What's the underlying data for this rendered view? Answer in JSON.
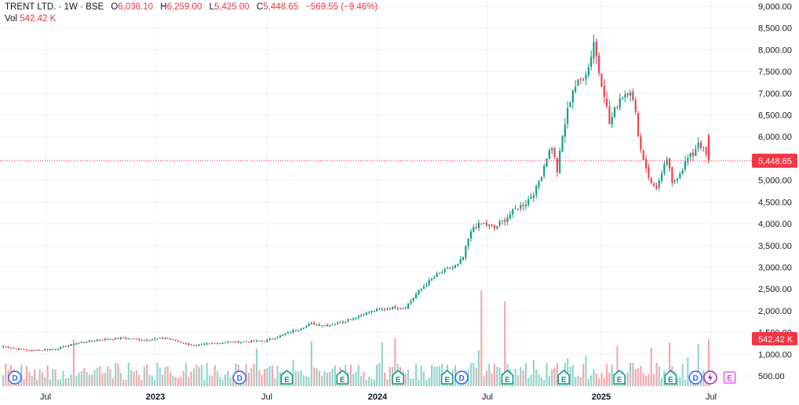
{
  "legend": {
    "symbol": "TRENT LTD.",
    "interval": "1W",
    "exchange": "BSE",
    "open_label": "O",
    "open": "6,036.10",
    "high_label": "H",
    "high": "6,259.00",
    "low_label": "L",
    "low": "5,425.00",
    "close_label": "C",
    "close": "5,448.65",
    "change": "−569.55 (−9.46%)",
    "vol_label": "Vol",
    "vol_value": "542.42 K"
  },
  "colors": {
    "up": "#089981",
    "down": "#f23645",
    "vol_up": "#8fd3c9",
    "vol_down": "#f5a3a8",
    "grid": "#f0f3fa",
    "axis_text": "#131722",
    "event_blue": "#2962ff",
    "event_green": "#089981",
    "event_purple": "#9c27b0",
    "event_pink": "#e040fb"
  },
  "price_tag": "5,448.65",
  "volume_tag": "542.42 K",
  "chart_data": {
    "type": "candlestick",
    "price_axis_ticks": [
      "9,000.00",
      "8,500.00",
      "8,000.00",
      "7,500.00",
      "7,000.00",
      "6,500.00",
      "6,000.00",
      "5,500.00",
      "5,000.00",
      "4,500.00",
      "4,000.00",
      "3,500.00",
      "3,000.00",
      "2,500.00",
      "2,000.00",
      "1,500.00",
      "1,000.00",
      "500.00"
    ],
    "ylim": [
      450,
      9000
    ],
    "time_axis_labels": [
      "Jul",
      "2023",
      "Jul",
      "2024",
      "Jul",
      "2025",
      "Jul"
    ],
    "last_price": 5448.65,
    "price_keypoints": [
      [
        0,
        1180
      ],
      [
        10,
        1080
      ],
      [
        20,
        1120
      ],
      [
        28,
        1250
      ],
      [
        36,
        1330
      ],
      [
        46,
        1370
      ],
      [
        54,
        1330
      ],
      [
        62,
        1370
      ],
      [
        66,
        1310
      ],
      [
        70,
        1240
      ],
      [
        74,
        1190
      ],
      [
        78,
        1240
      ],
      [
        84,
        1270
      ],
      [
        92,
        1290
      ],
      [
        100,
        1300
      ],
      [
        106,
        1420
      ],
      [
        112,
        1560
      ],
      [
        118,
        1700
      ],
      [
        124,
        1660
      ],
      [
        130,
        1760
      ],
      [
        136,
        1880
      ],
      [
        142,
        2000
      ],
      [
        146,
        2050
      ],
      [
        150,
        2080
      ],
      [
        154,
        2080
      ],
      [
        158,
        2380
      ],
      [
        162,
        2620
      ],
      [
        166,
        2820
      ],
      [
        170,
        2950
      ],
      [
        174,
        3050
      ],
      [
        176,
        3230
      ],
      [
        178,
        3640
      ],
      [
        180,
        3930
      ],
      [
        184,
        4000
      ],
      [
        188,
        3900
      ],
      [
        192,
        4100
      ],
      [
        196,
        4330
      ],
      [
        200,
        4480
      ],
      [
        204,
        4800
      ],
      [
        206,
        5140
      ],
      [
        208,
        5550
      ],
      [
        210,
        5780
      ],
      [
        212,
        5220
      ],
      [
        214,
        6000
      ],
      [
        216,
        6600
      ],
      [
        218,
        7100
      ],
      [
        221,
        7300
      ],
      [
        224,
        7600
      ],
      [
        226,
        8200
      ],
      [
        228,
        7500
      ],
      [
        230,
        7000
      ],
      [
        232,
        6300
      ],
      [
        234,
        6600
      ],
      [
        236,
        6900
      ],
      [
        238,
        7000
      ],
      [
        240,
        7100
      ],
      [
        242,
        6500
      ],
      [
        244,
        5700
      ],
      [
        246,
        5300
      ],
      [
        248,
        4900
      ],
      [
        250,
        4850
      ],
      [
        252,
        5100
      ],
      [
        254,
        5500
      ],
      [
        256,
        4900
      ],
      [
        258,
        5100
      ],
      [
        260,
        5300
      ],
      [
        262,
        5500
      ],
      [
        264,
        5600
      ],
      [
        266,
        5900
      ],
      [
        268,
        5700
      ],
      [
        270,
        5449
      ]
    ],
    "events": [
      {
        "type": "D",
        "position": 0.0186
      },
      {
        "type": "D",
        "position": 0.2999
      },
      {
        "type": "E",
        "position": 0.359
      },
      {
        "type": "E",
        "position": 0.4286
      },
      {
        "type": "E",
        "position": 0.4982
      },
      {
        "type": "E",
        "position": 0.5596
      },
      {
        "type": "D",
        "position": 0.5777
      },
      {
        "type": "E",
        "position": 0.635
      },
      {
        "type": "E",
        "position": 0.7056
      },
      {
        "type": "E",
        "position": 0.7752
      },
      {
        "type": "E",
        "position": 0.8394
      },
      {
        "type": "D",
        "position": 0.8706
      },
      {
        "type": "bolt",
        "position": 0.8889
      },
      {
        "type": "E-future",
        "position": 0.9131
      }
    ]
  }
}
